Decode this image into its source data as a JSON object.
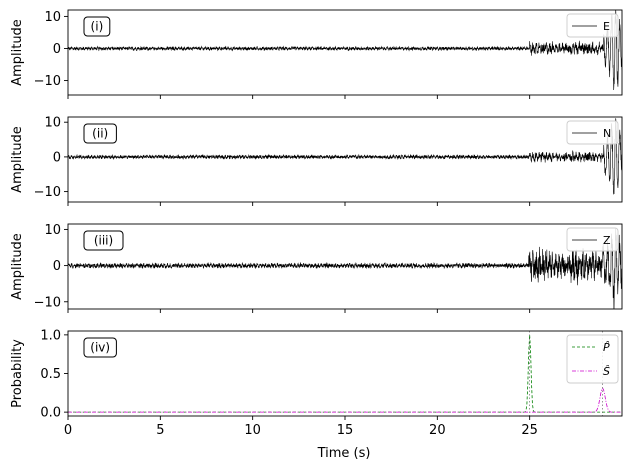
{
  "chart_data": {
    "type": "line",
    "xlabel": "Time (s)",
    "xlim": [
      0,
      30
    ],
    "x_ticks": [
      0,
      5,
      10,
      15,
      20,
      25
    ],
    "sample_rate_hz": 100,
    "panels": [
      {
        "label": "(i)",
        "ylabel": "Amplitude",
        "ylim": [
          -14.5,
          12
        ],
        "y_ticks": [
          -10,
          0,
          10
        ],
        "legend_position": "upper-right",
        "series": [
          {
            "name": "E",
            "color": "#000000",
            "line_style": "solid",
            "noise_amplitude": 0.45,
            "event_onset_s": 25.0,
            "coda_amplitude": 1.3,
            "peak_time_s": 29.6,
            "peak_amplitude": 13.0
          }
        ]
      },
      {
        "label": "(ii)",
        "ylabel": "Amplitude",
        "ylim": [
          -13,
          11.5
        ],
        "y_ticks": [
          -10,
          0,
          10
        ],
        "legend_position": "upper-right",
        "series": [
          {
            "name": "N",
            "color": "#000000",
            "line_style": "solid",
            "noise_amplitude": 0.45,
            "event_onset_s": 25.0,
            "coda_amplitude": 0.9,
            "peak_time_s": 29.6,
            "peak_amplitude": 11.0
          }
        ]
      },
      {
        "label": "(iii)",
        "ylabel": "Amplitude",
        "ylim": [
          -12,
          11.5
        ],
        "y_ticks": [
          -10,
          0,
          10
        ],
        "legend_position": "upper-right",
        "series": [
          {
            "name": "Z",
            "color": "#000000",
            "line_style": "solid",
            "noise_amplitude": 0.55,
            "event_onset_s": 24.95,
            "coda_amplitude": 3.0,
            "peak_time_s": 29.5,
            "peak_amplitude": 9.0
          }
        ]
      },
      {
        "label": "(iv)",
        "ylabel": "Probability",
        "ylim": [
          -0.05,
          1.05
        ],
        "y_ticks": [
          0.0,
          0.5,
          1.0
        ],
        "y_tick_labels": [
          "0.0",
          "0.5",
          "1.0"
        ],
        "legend_position": "upper-right",
        "series": [
          {
            "name": "P̂",
            "color": "#008000",
            "line_style": "dashed",
            "peak_time_s": 25.0,
            "peak_value": 1.0,
            "width_s": 0.1
          },
          {
            "name": "Ŝ",
            "color": "#cc00cc",
            "line_style": "dashdot",
            "peak_time_s": 28.95,
            "peak_value": 0.31,
            "width_s": 0.2
          }
        ],
        "pick_markers_s": [
          25.0,
          28.95
        ]
      }
    ]
  }
}
